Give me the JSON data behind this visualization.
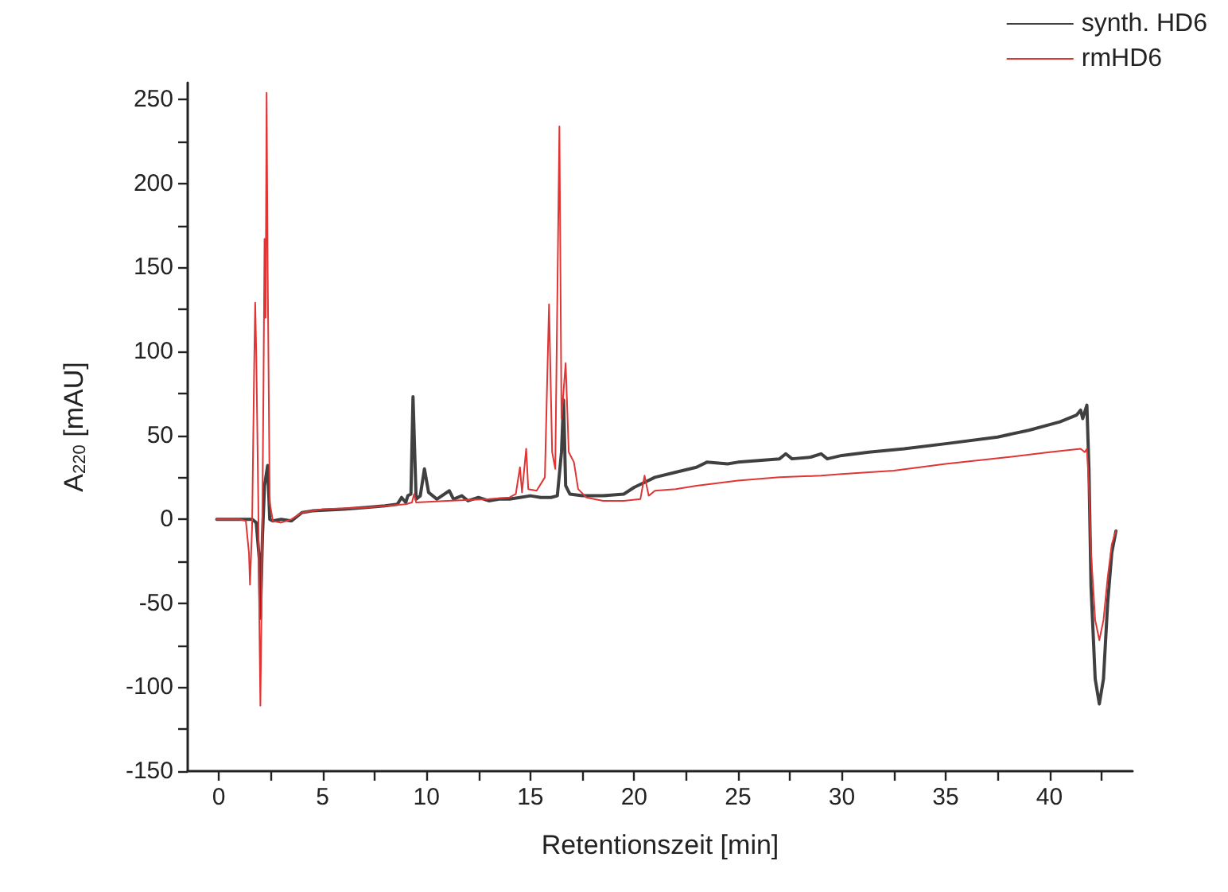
{
  "chart_data": {
    "type": "line",
    "xlabel": "Retentionszeit [min]",
    "ylabel": "A$_{220}$ [mAU]",
    "xlim": [
      -1.5,
      44
    ],
    "ylim": [
      -150,
      260
    ],
    "xticks": [
      0,
      {
        "value": 2.5,
        "label": null
      },
      5,
      {
        "value": 7.5,
        "label": null
      },
      10,
      {
        "value": 12.5,
        "label": null
      },
      15,
      {
        "value": 17.5,
        "label": null
      },
      20,
      {
        "value": 22.5,
        "label": null
      },
      25,
      {
        "value": 27.5,
        "label": null
      },
      30,
      {
        "value": 32.5,
        "label": null
      },
      35,
      {
        "value": 37.5,
        "label": null
      },
      40,
      {
        "value": 42.5,
        "label": null
      }
    ],
    "yticks": [
      -150,
      {
        "value": -125,
        "label": null
      },
      -100,
      {
        "value": -75,
        "label": null
      },
      -50,
      {
        "value": -25,
        "label": null
      },
      0,
      {
        "value": 25,
        "label": null
      },
      50,
      {
        "value": 75,
        "label": null
      },
      100,
      {
        "value": 125,
        "label": null
      },
      150,
      {
        "value": 175,
        "label": null
      },
      200,
      {
        "value": 225,
        "label": null
      },
      250
    ],
    "grid": false,
    "legend": "top right",
    "marker": "none",
    "line_style": "solid",
    "series": [
      {
        "name": "synth. HD6",
        "color": "#404040",
        "x": [
          -0.1,
          1.0,
          1.6,
          1.8,
          1.95,
          2.0,
          2.1,
          2.2,
          2.35,
          2.45,
          2.6,
          3.0,
          3.5,
          4.0,
          4.5,
          6,
          7,
          8,
          8.6,
          8.8,
          9.0,
          9.1,
          9.25,
          9.35,
          9.5,
          9.7,
          9.9,
          10.1,
          10.5,
          11.1,
          11.3,
          11.7,
          12,
          12.5,
          13,
          13.5,
          14,
          14.5,
          15,
          15.5,
          16,
          16.3,
          16.5,
          16.6,
          16.7,
          16.9,
          17.5,
          18.5,
          19.5,
          20,
          20.5,
          21,
          22,
          23,
          23.5,
          24.5,
          25,
          26,
          27,
          27.3,
          27.6,
          28.5,
          29,
          29.3,
          30,
          31.3,
          33,
          35,
          37.5,
          39,
          40.5,
          41.3,
          41.5,
          41.6,
          41.8,
          41.9,
          42.0,
          42.2,
          42.4,
          42.6,
          42.8,
          43.0,
          43.2
        ],
        "values": [
          0,
          0,
          0,
          -2,
          -24,
          -59,
          -10,
          20,
          32,
          0,
          -1,
          0,
          -1,
          4,
          5,
          6,
          7,
          8,
          9,
          13,
          10,
          14,
          15,
          73,
          12,
          14,
          30,
          16,
          12,
          17,
          12,
          14,
          11,
          13,
          11,
          12,
          12,
          13,
          14,
          13,
          13,
          14,
          40,
          71,
          20,
          15,
          14,
          14,
          15,
          19,
          22,
          25,
          28,
          31,
          34,
          33,
          34,
          35,
          36,
          39,
          36,
          37,
          39,
          36,
          38,
          40,
          42,
          45,
          49,
          53,
          58,
          62,
          65,
          60,
          68,
          30,
          -40,
          -95,
          -110,
          -95,
          -50,
          -20,
          -7
        ]
      },
      {
        "name": "rmHD6",
        "color": "#e03535",
        "x": [
          -0.1,
          1.0,
          1.3,
          1.45,
          1.5,
          1.6,
          1.7,
          1.75,
          1.8,
          1.9,
          1.95,
          2.0,
          2.05,
          2.15,
          2.2,
          2.25,
          2.3,
          2.35,
          2.45,
          2.6,
          3.0,
          3.5,
          4,
          5,
          7,
          9,
          9.3,
          9.4,
          9.5,
          11,
          13,
          14,
          14.3,
          14.5,
          14.6,
          14.8,
          14.9,
          15.3,
          15.7,
          15.9,
          16.05,
          16.2,
          16.4,
          16.5,
          16.7,
          16.85,
          17.1,
          17.3,
          17.7,
          18.5,
          19.5,
          20.3,
          20.5,
          20.7,
          21,
          22,
          23,
          25,
          27,
          29,
          30,
          32.5,
          35,
          38,
          40,
          41.5,
          41.7,
          41.8,
          41.9,
          42.0,
          42.2,
          42.4,
          42.6,
          42.8,
          43.0,
          43.2
        ],
        "values": [
          0,
          0,
          -1,
          -20,
          -39,
          -5,
          90,
          129,
          100,
          10,
          -60,
          -111,
          -60,
          80,
          167,
          120,
          254,
          150,
          10,
          -1,
          -2,
          0,
          4,
          6,
          7,
          9,
          10,
          15,
          10,
          11,
          12,
          13,
          15,
          31,
          16,
          42,
          18,
          17,
          25,
          128,
          40,
          30,
          234,
          60,
          93,
          40,
          34,
          18,
          13,
          11,
          11,
          12,
          26,
          14,
          17,
          18,
          20,
          23,
          25,
          26,
          27,
          29,
          33,
          37,
          40,
          42,
          40,
          42,
          20,
          -20,
          -60,
          -72,
          -60,
          -35,
          -15,
          -7
        ]
      }
    ]
  }
}
